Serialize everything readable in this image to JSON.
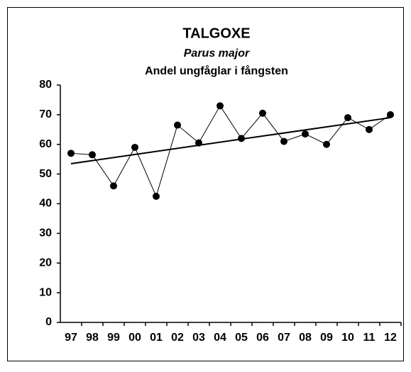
{
  "chart_data": {
    "type": "line",
    "title": "TALGOXE",
    "subtitle": "Parus major",
    "description": "Andel ungfåglar i fångsten",
    "categories": [
      "97",
      "98",
      "99",
      "00",
      "01",
      "02",
      "03",
      "04",
      "05",
      "06",
      "07",
      "08",
      "09",
      "10",
      "11",
      "12"
    ],
    "series": [
      {
        "color": "#000000",
        "values": [
          57,
          56.5,
          46,
          59,
          42.5,
          66.5,
          60.5,
          73,
          62,
          70.5,
          61,
          63.5,
          60,
          69,
          65,
          70
        ]
      }
    ],
    "trend": {
      "color": "#000000",
      "values": [
        53.5,
        69
      ]
    },
    "ylim": [
      0,
      80
    ],
    "yticks": [
      0,
      10,
      20,
      30,
      40,
      50,
      60,
      70,
      80
    ],
    "grid": false
  }
}
